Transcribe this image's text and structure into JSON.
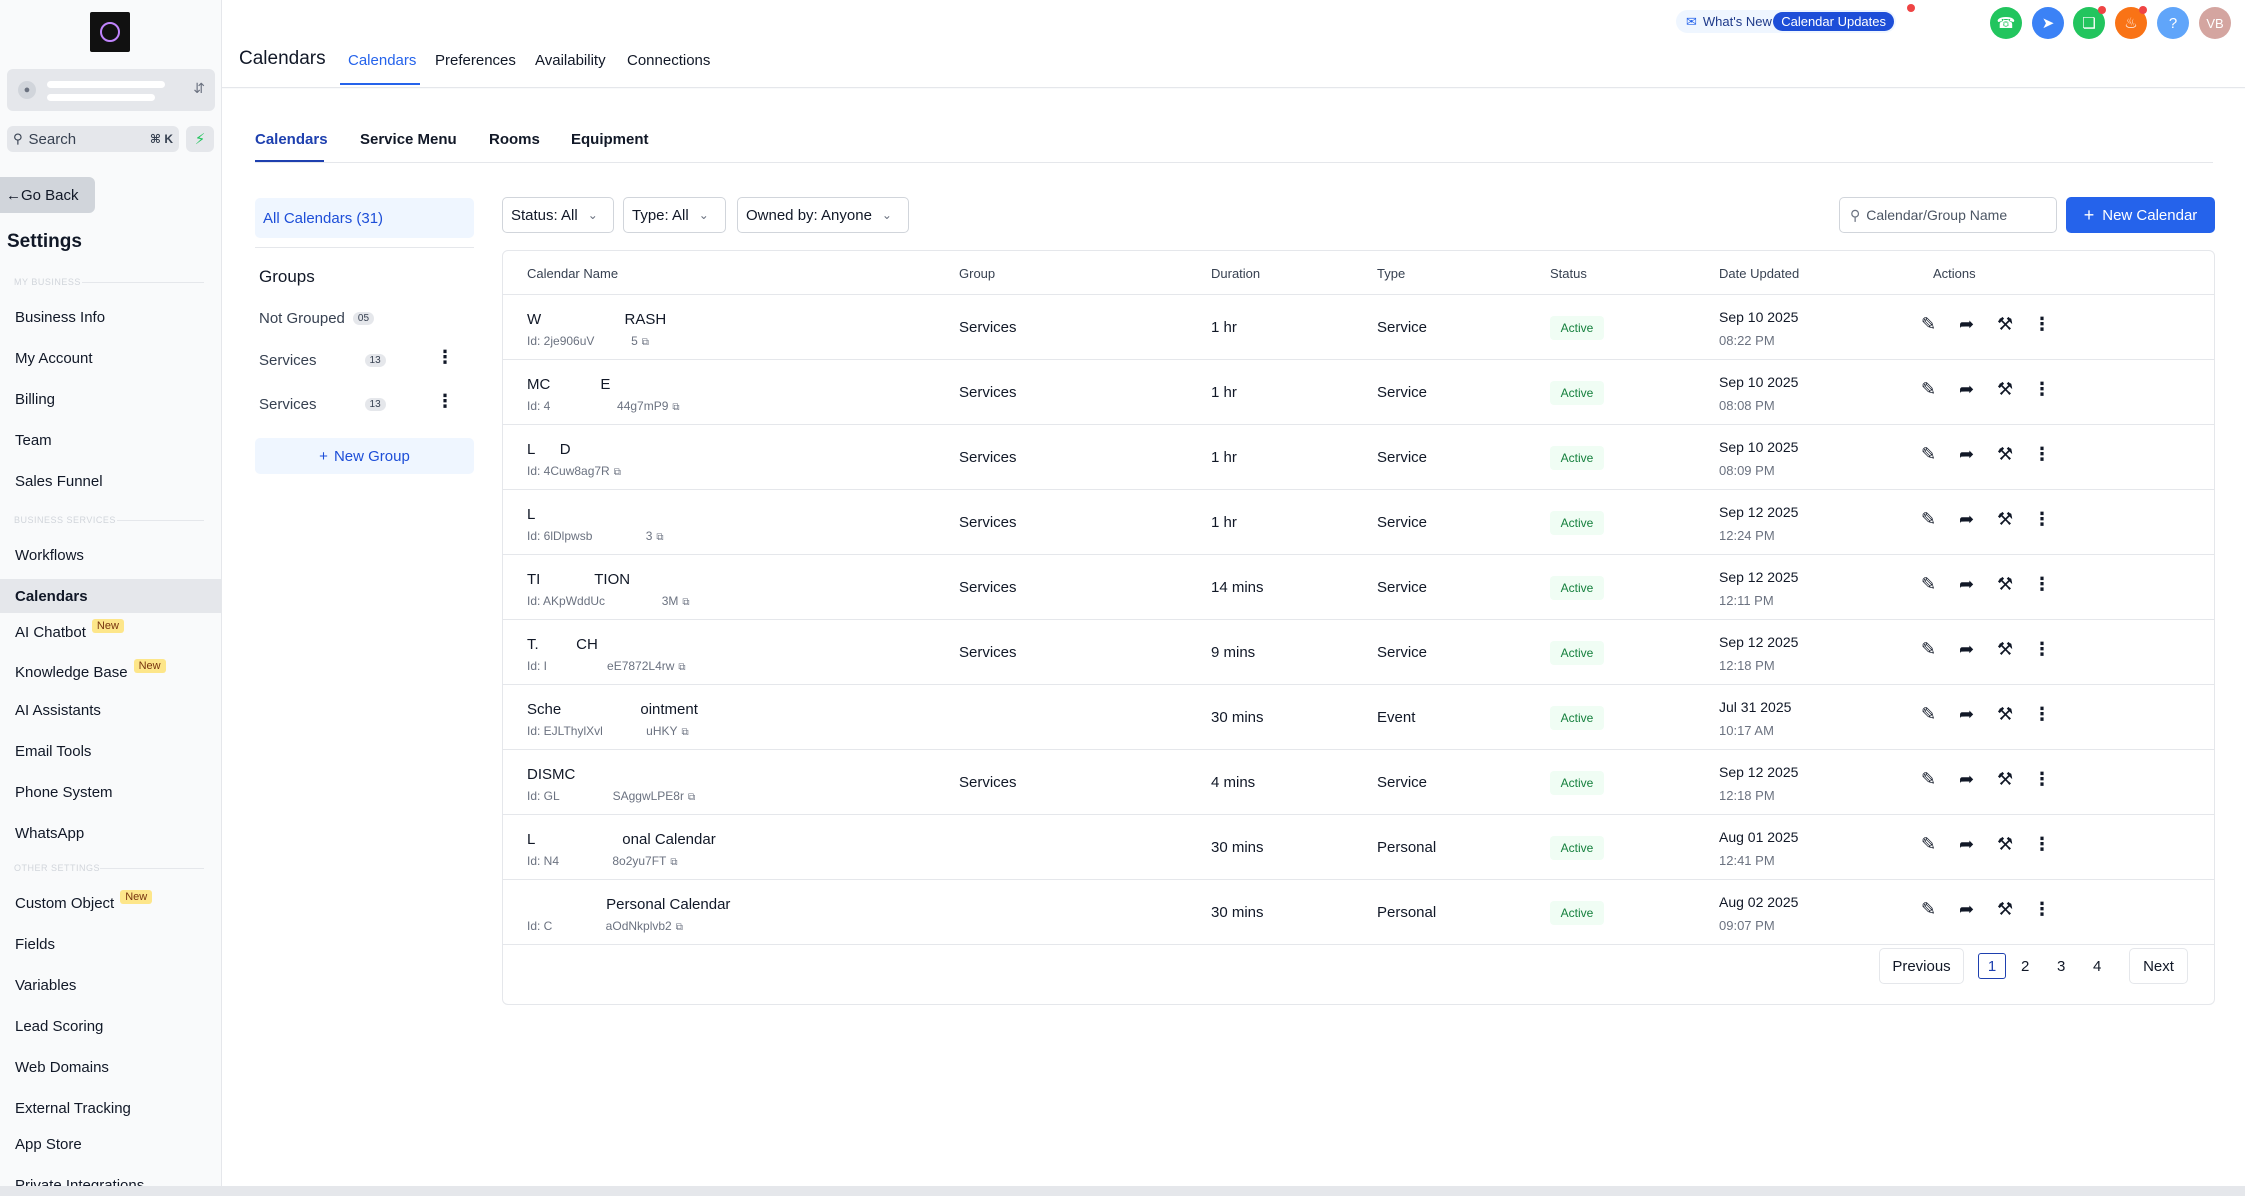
{
  "sidebar": {
    "search_label": "Search",
    "search_kbd": "⌘ K",
    "go_back": "Go Back",
    "settings_title": "Settings",
    "sections": {
      "my_business": "MY BUSINESS",
      "business_services": "BUSINESS SERVICES",
      "other_settings": "OTHER SETTINGS"
    },
    "items": [
      {
        "label": "Business Info"
      },
      {
        "label": "My Account"
      },
      {
        "label": "Billing"
      },
      {
        "label": "Team"
      },
      {
        "label": "Sales Funnel"
      },
      {
        "label": "Workflows"
      },
      {
        "label": "Calendars"
      },
      {
        "label": "AI Chatbot",
        "badge": "New"
      },
      {
        "label": "Knowledge Base",
        "badge": "New"
      },
      {
        "label": "AI Assistants"
      },
      {
        "label": "Email Tools"
      },
      {
        "label": "Phone System"
      },
      {
        "label": "WhatsApp"
      },
      {
        "label": "Custom Object",
        "badge": "New"
      },
      {
        "label": "Fields"
      },
      {
        "label": "Variables"
      },
      {
        "label": "Lead Scoring"
      },
      {
        "label": "Web Domains"
      },
      {
        "label": "External Tracking"
      },
      {
        "label": "App Store"
      },
      {
        "label": "Private Integrations"
      }
    ]
  },
  "header": {
    "title": "Calendars",
    "tabs": [
      {
        "label": "Calendars"
      },
      {
        "label": "Preferences"
      },
      {
        "label": "Availability"
      },
      {
        "label": "Connections"
      }
    ],
    "whats_new": "What's New",
    "calendar_updates": "Calendar Updates",
    "avatar_initials": "VB",
    "help": "?"
  },
  "subtabs": [
    {
      "label": "Calendars"
    },
    {
      "label": "Service Menu"
    },
    {
      "label": "Rooms"
    },
    {
      "label": "Equipment"
    }
  ],
  "left_panel": {
    "all_calendars": "All Calendars (31)",
    "groups_title": "Groups",
    "groups": [
      {
        "name": "Not Grouped",
        "count": "05"
      },
      {
        "name": "Services",
        "count": "13"
      },
      {
        "name": "Services",
        "count": "13"
      }
    ],
    "new_group": "New Group"
  },
  "filters": {
    "status": "Status: All",
    "type": "Type: All",
    "owned_by": "Owned by: Anyone",
    "search_placeholder": "Calendar/Group Name",
    "new_calendar": "New Calendar"
  },
  "table": {
    "columns": [
      "Calendar Name",
      "Group",
      "Duration",
      "Type",
      "Status",
      "Date Updated",
      "Actions"
    ],
    "rows": [
      {
        "name": "W                    RASH",
        "id": "Id: 2je906uV           5",
        "group": "Services",
        "duration": "1 hr",
        "type": "Service",
        "status": "Active",
        "date": "Sep 10 2025",
        "time": "08:22 PM"
      },
      {
        "name": "MC            E",
        "id": "Id: 4                    44g7mP9",
        "group": "Services",
        "duration": "1 hr",
        "type": "Service",
        "status": "Active",
        "date": "Sep 10 2025",
        "time": "08:08 PM"
      },
      {
        "name": "L      D",
        "id": "Id: 4Cuw8ag7R",
        "group": "Services",
        "duration": "1 hr",
        "type": "Service",
        "status": "Active",
        "date": "Sep 10 2025",
        "time": "08:09 PM"
      },
      {
        "name": "L",
        "id": "Id: 6lDlpwsb                3",
        "group": "Services",
        "duration": "1 hr",
        "type": "Service",
        "status": "Active",
        "date": "Sep 12 2025",
        "time": "12:24 PM"
      },
      {
        "name": "TI             TION",
        "id": "Id: AKpWddUc                 3M",
        "group": "Services",
        "duration": "14 mins",
        "type": "Service",
        "status": "Active",
        "date": "Sep 12 2025",
        "time": "12:11 PM"
      },
      {
        "name": "T.         CH",
        "id": "Id: I                  eE7872L4rw",
        "group": "Services",
        "duration": "9 mins",
        "type": "Service",
        "status": "Active",
        "date": "Sep 12 2025",
        "time": "12:18 PM"
      },
      {
        "name": "Sche                   ointment",
        "id": "Id: EJLThylXvl             uHKY",
        "group": "",
        "duration": "30 mins",
        "type": "Event",
        "status": "Active",
        "date": "Jul 31 2025",
        "time": "10:17 AM"
      },
      {
        "name": "DISMC",
        "id": "Id: GL                SAggwLPE8r",
        "group": "Services",
        "duration": "4 mins",
        "type": "Service",
        "status": "Active",
        "date": "Sep 12 2025",
        "time": "12:18 PM"
      },
      {
        "name": "L                     onal Calendar",
        "id": "Id: N4                8o2yu7FT",
        "group": "",
        "duration": "30 mins",
        "type": "Personal",
        "status": "Active",
        "date": "Aug 01 2025",
        "time": "12:41 PM"
      },
      {
        "name": "                   Personal Calendar",
        "id": "Id: C                aOdNkplvb2",
        "group": "",
        "duration": "30 mins",
        "type": "Personal",
        "status": "Active",
        "date": "Aug 02 2025",
        "time": "09:07 PM"
      }
    ]
  },
  "pagination": {
    "previous": "Previous",
    "pages": [
      "1",
      "2",
      "3",
      "4"
    ],
    "next": "Next"
  },
  "colors": {
    "accent": "#2563eb",
    "active_badge_bg": "#f0fdf4",
    "active_badge_text": "#15803d"
  }
}
